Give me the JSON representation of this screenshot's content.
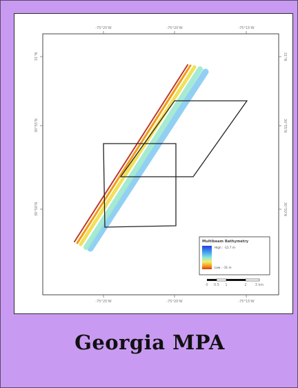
{
  "page": {
    "background": "#c99af2",
    "caption": "Georgia MPA"
  },
  "map": {
    "graticule": {
      "top_labels": [
        "-75°25'W",
        "-75°20'W",
        "-75°15'W"
      ],
      "bottom_labels": [
        "-75°25'W",
        "-75°20'W",
        "-75°15'W"
      ],
      "left_labels": [
        "31°N",
        "30°55'N",
        "30°50'N"
      ],
      "right_labels": [
        "31°N",
        "30°55'N",
        "30°50'N"
      ]
    },
    "legend": {
      "title": "Multibeam Bathymetry",
      "high_label": "High : -12.7 m",
      "low_label": "Low : -31 m",
      "colors": [
        "#1f3fe0",
        "#4aa8f0",
        "#8ce6d8",
        "#f2ee70",
        "#f5a020",
        "#d64010"
      ],
      "scale_labels": [
        "0",
        "0.5",
        "1",
        "2",
        "3 km"
      ]
    },
    "colors": {
      "outline": "#222222",
      "swath": [
        "#c0392b",
        "#f39c12",
        "#f1e05a",
        "#9ee8d0",
        "#7ec8f2"
      ]
    }
  }
}
